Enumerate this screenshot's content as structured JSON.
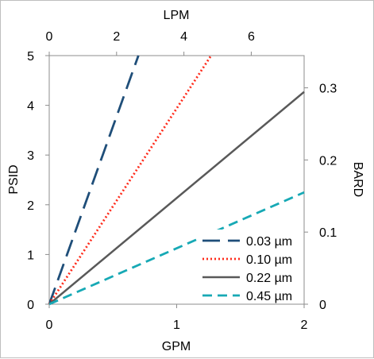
{
  "chart_data": {
    "type": "line",
    "title": "",
    "xlabel": "GPM",
    "ylabel": "PSID",
    "x2label": "LPM",
    "y2label": "BARD",
    "xlim": [
      0,
      2
    ],
    "ylim": [
      0,
      5
    ],
    "x2lim": [
      0,
      7.57
    ],
    "y2lim": [
      0,
      0.3447
    ],
    "xticks": [
      "0",
      "1",
      "2"
    ],
    "xtick_values": [
      0,
      1,
      2
    ],
    "yticks": [
      "0",
      "1",
      "2",
      "3",
      "4",
      "5"
    ],
    "ytick_values": [
      0,
      1,
      2,
      3,
      4,
      5
    ],
    "x2ticks": [
      "0",
      "2",
      "4",
      "6"
    ],
    "x2tick_values": [
      0,
      2,
      4,
      6
    ],
    "y2ticks": [
      "0",
      "0.1",
      "0.2",
      "0.3"
    ],
    "y2tick_values": [
      0,
      0.1,
      0.2,
      0.3
    ],
    "grid": false,
    "legend_position": "bottom-right",
    "series": [
      {
        "name": "0.03 µm",
        "color": "#1f4e79",
        "dash": "long-dash",
        "x": [
          0,
          0.7
        ],
        "y": [
          0,
          5
        ]
      },
      {
        "name": "0.10 µm",
        "color": "#ff2a1a",
        "dash": "dotted",
        "x": [
          0,
          1.27
        ],
        "y": [
          0,
          5
        ]
      },
      {
        "name": "0.22 µm",
        "color": "#595959",
        "dash": "solid",
        "x": [
          0,
          2
        ],
        "y": [
          0,
          4.27
        ]
      },
      {
        "name": "0.45 µm",
        "color": "#17a9b5",
        "dash": "dashed",
        "x": [
          0,
          2
        ],
        "y": [
          0,
          2.25
        ]
      }
    ]
  }
}
